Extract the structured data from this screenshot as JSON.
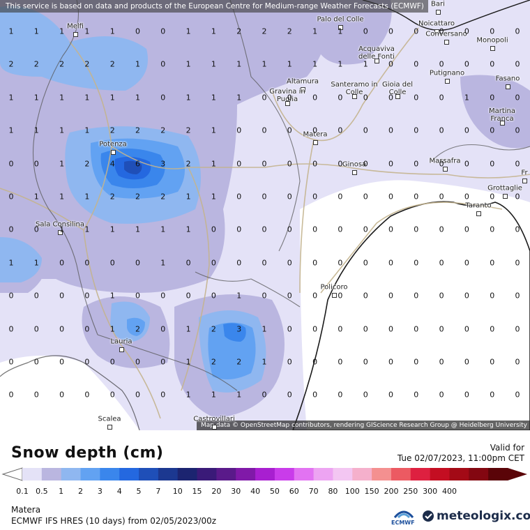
{
  "header": {
    "disclaimer": "This service is based on data and products of the European Centre for Medium-range Weather Forecasts (ECMWF)"
  },
  "map": {
    "attribution": "Map data © OpenStreetMap contributors, rendering GIScience Research Group @ Heidelberg University",
    "cities": [
      {
        "name": "Bari"
      },
      {
        "name": "Melfi"
      },
      {
        "name": "Palo del Colle"
      },
      {
        "name": "Noicattaro"
      },
      {
        "name": "Conversano"
      },
      {
        "name": "Monopoli"
      },
      {
        "name": "Acquaviva delle Fonti"
      },
      {
        "name": "Putignano"
      },
      {
        "name": "Fasano"
      },
      {
        "name": "Altamura"
      },
      {
        "name": "Gravina in Puglia"
      },
      {
        "name": "Santeramo in Colle"
      },
      {
        "name": "Gioia del Colle"
      },
      {
        "name": "Martina Franca"
      },
      {
        "name": "Matera"
      },
      {
        "name": "Potenza"
      },
      {
        "name": "Ginosa"
      },
      {
        "name": "Massafra"
      },
      {
        "name": "Grottaglie"
      },
      {
        "name": "Taranto"
      },
      {
        "name": "Sala Consilina"
      },
      {
        "name": "Policoro"
      },
      {
        "name": "Lauria"
      },
      {
        "name": "Scalea"
      },
      {
        "name": "Castrovillari"
      },
      {
        "name": "Fr"
      }
    ],
    "grid_values": [
      [
        "1",
        "1",
        "1",
        "1",
        "1",
        "0",
        "0",
        "1",
        "1",
        "2",
        "2",
        "2",
        "1",
        "1",
        "0",
        "0",
        "0",
        "0",
        "0",
        "0",
        "0"
      ],
      [
        "2",
        "2",
        "2",
        "2",
        "2",
        "1",
        "0",
        "1",
        "1",
        "1",
        "1",
        "1",
        "1",
        "1",
        "1",
        "0",
        "0",
        "0",
        "0",
        "0",
        "0"
      ],
      [
        "1",
        "1",
        "1",
        "1",
        "1",
        "1",
        "0",
        "1",
        "1",
        "1",
        "0",
        "0",
        "0",
        "0",
        "0",
        "0",
        "0",
        "0",
        "1",
        "0",
        "0"
      ],
      [
        "1",
        "1",
        "1",
        "1",
        "2",
        "2",
        "2",
        "2",
        "1",
        "0",
        "0",
        "0",
        "0",
        "0",
        "0",
        "0",
        "0",
        "0",
        "0",
        "0",
        "0"
      ],
      [
        "0",
        "0",
        "1",
        "2",
        "4",
        "6",
        "3",
        "2",
        "1",
        "0",
        "0",
        "0",
        "0",
        "0",
        "0",
        "0",
        "0",
        "0",
        "0",
        "0",
        "0"
      ],
      [
        "0",
        "1",
        "1",
        "1",
        "2",
        "2",
        "2",
        "1",
        "1",
        "0",
        "0",
        "0",
        "0",
        "0",
        "0",
        "0",
        "0",
        "0",
        "0",
        "0",
        "0"
      ],
      [
        "0",
        "0",
        "1",
        "1",
        "1",
        "1",
        "1",
        "1",
        "0",
        "0",
        "0",
        "0",
        "0",
        "0",
        "0",
        "0",
        "0",
        "0",
        "0",
        "0",
        "0"
      ],
      [
        "1",
        "1",
        "0",
        "0",
        "0",
        "0",
        "1",
        "0",
        "0",
        "0",
        "0",
        "0",
        "0",
        "0",
        "0",
        "0",
        "0",
        "0",
        "0",
        "0",
        "0"
      ],
      [
        "0",
        "0",
        "0",
        "0",
        "1",
        "0",
        "0",
        "0",
        "0",
        "1",
        "0",
        "0",
        "0",
        "0",
        "0",
        "0",
        "0",
        "0",
        "0",
        "0",
        "0"
      ],
      [
        "0",
        "0",
        "0",
        "0",
        "1",
        "2",
        "0",
        "1",
        "2",
        "3",
        "1",
        "0",
        "0",
        "0",
        "0",
        "0",
        "0",
        "0",
        "0",
        "0",
        "0"
      ],
      [
        "0",
        "0",
        "0",
        "0",
        "0",
        "0",
        "0",
        "1",
        "2",
        "2",
        "1",
        "0",
        "0",
        "0",
        "0",
        "0",
        "0",
        "0",
        "0",
        "0",
        "0"
      ],
      [
        "0",
        "0",
        "0",
        "0",
        "0",
        "0",
        "0",
        "1",
        "1",
        "1",
        "0",
        "0",
        "0",
        "0",
        "0",
        "0",
        "0",
        "0",
        "0",
        "0",
        "0"
      ]
    ]
  },
  "legend": {
    "title": "Snow depth (cm)",
    "valid_label": "Valid for",
    "valid_time": "Tue 02/07/2023, 11:00pm CET",
    "ticks": [
      "0.1",
      "0.5",
      "1",
      "2",
      "3",
      "4",
      "5",
      "7",
      "10",
      "15",
      "20",
      "30",
      "40",
      "50",
      "60",
      "70",
      "80",
      "100",
      "150",
      "200",
      "250",
      "300",
      "400"
    ],
    "colors": [
      "#e4e2f7",
      "#bab6e0",
      "#8fb7f0",
      "#62a2f2",
      "#3a86ec",
      "#2468e0",
      "#1f4fb8",
      "#1c3890",
      "#1c2470",
      "#3a1a78",
      "#5a1a8a",
      "#8019a8",
      "#a81fd0",
      "#c93cea",
      "#e273f2",
      "#eda4f2",
      "#f3c6f2",
      "#f5b0cc",
      "#f49090",
      "#ec5a62",
      "#de2040",
      "#c40e22",
      "#a30a16",
      "#830711",
      "#5a0408"
    ]
  },
  "footer": {
    "location": "Matera",
    "model": "ECMWF IFS HRES (10 days) from 02/05/2023/00z",
    "ecmwf_logo_text": "ECMWF",
    "brand": "meteologix.com"
  }
}
